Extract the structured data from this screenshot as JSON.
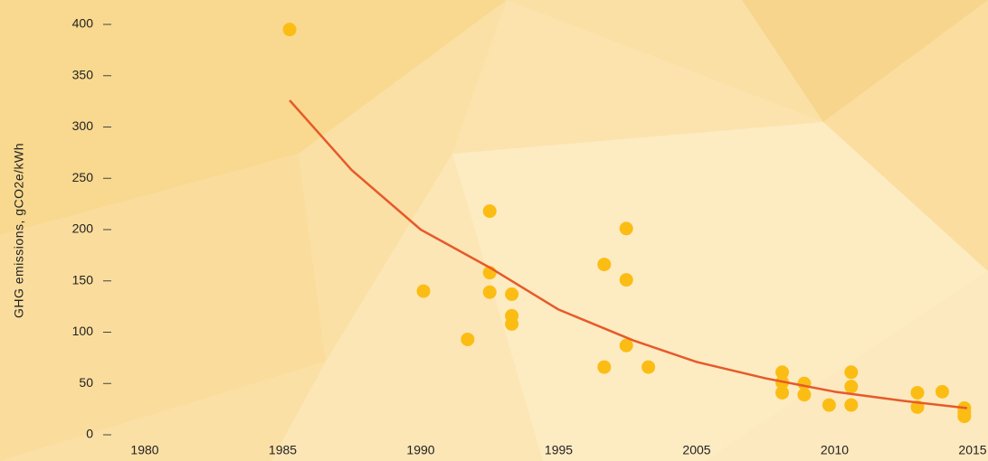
{
  "chart_data": {
    "type": "scatter",
    "y_label": "GHG emissions, gCO2e/kWh",
    "xlim": [
      1980,
      2015
    ],
    "xticks": [
      1980,
      1985,
      1990,
      1995,
      2005,
      2010,
      2015
    ],
    "ylim": [
      0,
      400
    ],
    "yticks": [
      0,
      50,
      100,
      150,
      200,
      250,
      300,
      350,
      400
    ],
    "series": [
      {
        "color": "#fbbd14",
        "x": [
          1985.25,
          1990.1,
          1991.7,
          1992.5,
          1992.5,
          1992.5,
          1993.3,
          1993.3,
          1993.3,
          1998.3,
          1998.3,
          1999.9,
          1999.9,
          1999.9,
          2001.5,
          2008.1,
          2008.1,
          2008.1,
          2008.9,
          2008.9,
          2009.8,
          2010.6,
          2010.6,
          2010.6,
          2013.0,
          2013.0,
          2013.9,
          2014.7,
          2014.7,
          2014.7
        ],
        "values": [
          395,
          140,
          93,
          218,
          158,
          139,
          137,
          116,
          108,
          166,
          66,
          201,
          151,
          87,
          66,
          61,
          51,
          41,
          50,
          39,
          29,
          61,
          47,
          29,
          41,
          27,
          42,
          26,
          22,
          18
        ]
      },
      {
        "type": "line",
        "color": "#e65a2a",
        "x": [
          1985.25,
          1987.5,
          1990,
          1992.5,
          1995,
          2000.4,
          2005,
          2007.5,
          2010,
          2012.5,
          2014.8
        ],
        "values": [
          326,
          258,
          200,
          163,
          122,
          92,
          71,
          55,
          42,
          33,
          26
        ]
      }
    ]
  }
}
